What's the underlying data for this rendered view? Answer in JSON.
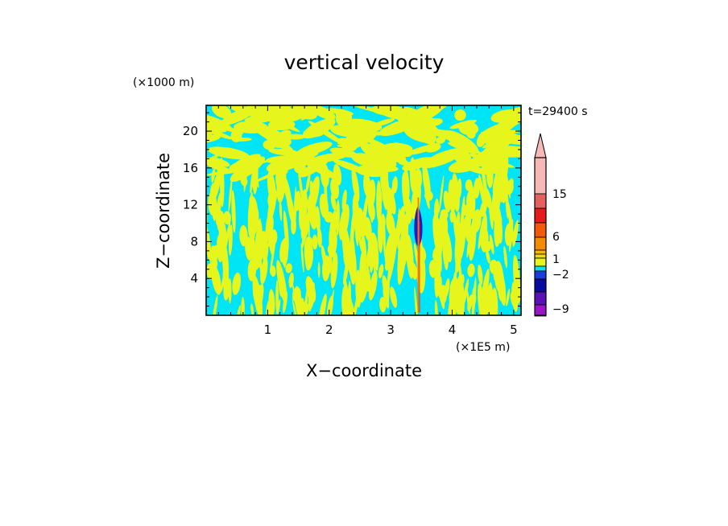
{
  "chart_data": {
    "type": "heatmap",
    "title": "vertical velocity",
    "xlabel": "X−coordinate",
    "ylabel": "Z−coordinate",
    "x_unit": "(×1E5 m)",
    "y_unit": "(×1000 m)",
    "time_label": "t=29400 s",
    "xlim": [
      0,
      5.12
    ],
    "ylim": [
      0,
      22.8
    ],
    "xticks": [
      1,
      2,
      3,
      4,
      5
    ],
    "yticks": [
      4,
      8,
      12,
      16,
      20
    ],
    "grid": false,
    "background_colors": {
      "dominant": "#00e5f5",
      "secondary": "#e6f51c"
    },
    "features": [
      {
        "name": "updraft core",
        "x": 3.44,
        "z_range": [
          7.4,
          11.8
        ],
        "color": "#1a1ac8"
      },
      {
        "name": "updraft column",
        "x": 3.45,
        "z_range": [
          0.3,
          12.8
        ],
        "color": "#f57a00"
      }
    ],
    "colorbar": {
      "extend": "max",
      "tick_labels": [
        "15",
        "6",
        "1",
        "−2",
        "−9"
      ],
      "levels_top_to_bottom": [
        {
          "color": "#f7b8b8"
        },
        {
          "color": "#e66060"
        },
        {
          "color": "#e61a1a"
        },
        {
          "color": "#f25a0a"
        },
        {
          "color": "#f58c00"
        },
        {
          "color": "#f5b800"
        },
        {
          "color": "#f5d800"
        },
        {
          "color": "#e6f51c"
        },
        {
          "color": "#00e5f5"
        },
        {
          "color": "#1a3cdc"
        },
        {
          "color": "#0a0aa0"
        },
        {
          "color": "#5a12b4"
        },
        {
          "color": "#9a14c8"
        },
        {
          "color": "#d814c8"
        }
      ]
    }
  }
}
